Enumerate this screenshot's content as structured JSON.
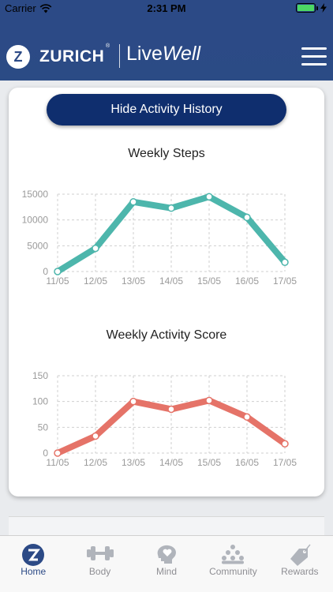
{
  "status_bar": {
    "carrier": "Carrier",
    "time": "2:31 PM"
  },
  "header": {
    "logo_letter": "Z",
    "brand": "ZURICH",
    "brand_mark": "®",
    "product_prefix": "Live",
    "product_suffix": "Well"
  },
  "card": {
    "toggle_label": "Hide Activity History"
  },
  "charts": [
    {
      "title": "Weekly Steps",
      "line_color": "#4db6ac"
    },
    {
      "title": "Weekly Activity Score",
      "line_color": "#e57368"
    }
  ],
  "chart_data": [
    {
      "type": "line",
      "title": "Weekly Steps",
      "categories": [
        "11/05",
        "12/05",
        "13/05",
        "14/05",
        "15/05",
        "16/05",
        "17/05"
      ],
      "values": [
        0,
        4500,
        13500,
        12300,
        14500,
        10500,
        1800
      ],
      "yticks": [
        0,
        5000,
        10000,
        15000
      ],
      "ylim": [
        0,
        15000
      ],
      "grid": true,
      "xlabel": "",
      "ylabel": ""
    },
    {
      "type": "line",
      "title": "Weekly Activity Score",
      "categories": [
        "11/05",
        "12/05",
        "13/05",
        "14/05",
        "15/05",
        "16/05",
        "17/05"
      ],
      "values": [
        0,
        33,
        100,
        85,
        102,
        70,
        18
      ],
      "yticks": [
        0,
        50,
        100,
        150
      ],
      "ylim": [
        0,
        150
      ],
      "grid": true,
      "xlabel": "",
      "ylabel": ""
    }
  ],
  "tabs": [
    {
      "label": "Home",
      "icon": "zurich-logo-icon",
      "active": true
    },
    {
      "label": "Body",
      "icon": "dumbbell-icon",
      "active": false
    },
    {
      "label": "Mind",
      "icon": "heart-head-icon",
      "active": false
    },
    {
      "label": "Community",
      "icon": "people-icon",
      "active": false
    },
    {
      "label": "Rewards",
      "icon": "tag-icon",
      "active": false
    }
  ]
}
